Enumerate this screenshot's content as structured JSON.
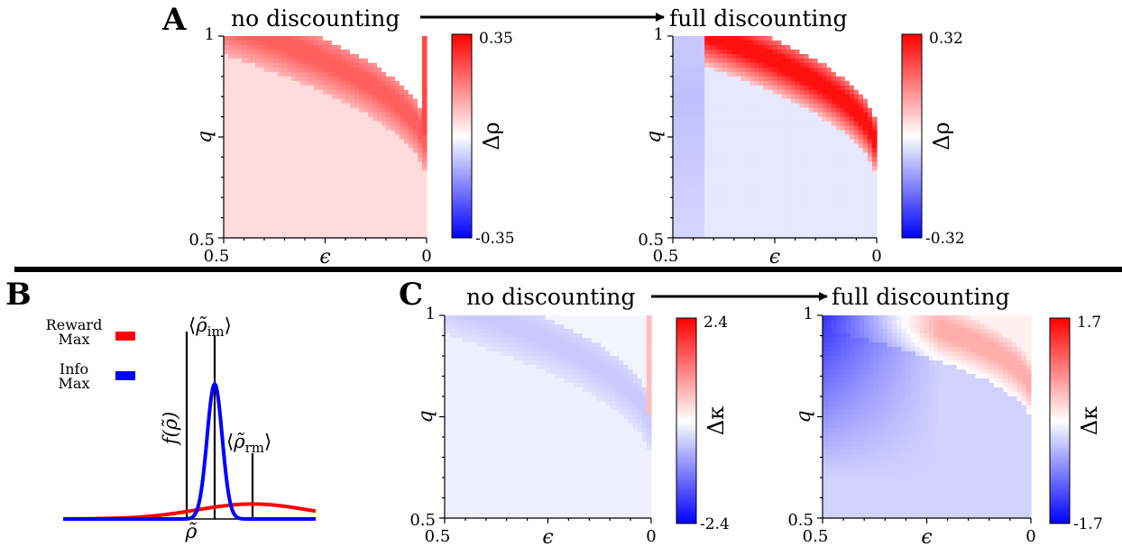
{
  "panels": {
    "A": {
      "letter": "A",
      "from_label": "no discounting",
      "to_label": "full discounting"
    },
    "B": {
      "letter": "B"
    },
    "C": {
      "letter": "C",
      "from_label": "no discounting",
      "to_label": "full discounting"
    }
  },
  "colors": {
    "red": "#ff0000",
    "blue": "#0000ff",
    "white": "#ffffff",
    "black": "#000000"
  },
  "chart_data": [
    {
      "type": "heatmap",
      "id": "A-left",
      "xlabel": "ϵ",
      "ylabel": "q",
      "xlim": [
        0.5,
        0
      ],
      "ylim": [
        0.5,
        1
      ],
      "x_tick_labels": [
        "0.5",
        "0"
      ],
      "y_tick_labels": [
        "0.5",
        "1"
      ],
      "colorbar": {
        "label": "Δρ",
        "min": -0.35,
        "max": 0.35,
        "min_label": "-0.35",
        "max_label": "0.35"
      },
      "pattern": {
        "base": 0.05,
        "band_value": 0.22,
        "band_q_at_eps0": 0.75,
        "band_eps_at_q1": 0.3,
        "upper_value": 0.0,
        "edge_value": 0.25
      }
    },
    {
      "type": "heatmap",
      "id": "A-right",
      "xlabel": "ϵ",
      "ylabel": "q",
      "xlim": [
        0.5,
        0
      ],
      "ylim": [
        0.5,
        1
      ],
      "x_tick_labels": [
        "0.5",
        "0"
      ],
      "y_tick_labels": [
        "0.5",
        "1"
      ],
      "colorbar": {
        "label": "Δρ",
        "min": -0.32,
        "max": 0.32,
        "min_label": "-0.32",
        "max_label": "0.32"
      },
      "pattern": {
        "base": -0.03,
        "band_value": 0.3,
        "band_q_at_eps0": 0.75,
        "band_eps_at_q1": 0.3,
        "upper_value": 0.0,
        "left_value": -0.08
      }
    },
    {
      "type": "line",
      "id": "B",
      "xlabel": "ρ̃",
      "ylabel": "f(ρ̃)",
      "legend": [
        "Reward Max",
        "Info Max"
      ],
      "series": [
        {
          "name": "Reward Max",
          "color": "#ff0000",
          "mean": 0.75,
          "sd": 0.22,
          "peak": 0.08
        },
        {
          "name": "Info Max",
          "color": "#0000ff",
          "mean": 0.6,
          "sd": 0.03,
          "peak": 0.72
        }
      ],
      "annotations": [
        {
          "label": "⟨ρ̃im⟩",
          "x": 0.6
        },
        {
          "label": "⟨ρ̃rm⟩",
          "x": 0.75
        }
      ]
    },
    {
      "type": "heatmap",
      "id": "C-left",
      "xlabel": "ϵ",
      "ylabel": "q",
      "xlim": [
        0.5,
        0
      ],
      "ylim": [
        0.5,
        1
      ],
      "x_tick_labels": [
        "0.5",
        "0"
      ],
      "y_tick_labels": [
        "0.5",
        "1"
      ],
      "colorbar": {
        "label": "Δκ",
        "min": -2.4,
        "max": 2.4,
        "min_label": "-2.4",
        "max_label": "2.4"
      },
      "pattern": {
        "base": -0.15,
        "band_value": -0.5,
        "band_q_at_eps0": 0.75,
        "band_eps_at_q1": 0.3,
        "upper_value": -0.1,
        "edge_value": 0.6
      }
    },
    {
      "type": "heatmap",
      "id": "C-right",
      "xlabel": "ϵ",
      "ylabel": "q",
      "xlim": [
        0.5,
        0
      ],
      "ylim": [
        0.5,
        1
      ],
      "x_tick_labels": [
        "0.5",
        "0"
      ],
      "y_tick_labels": [
        "0.5",
        "1"
      ],
      "colorbar": {
        "label": "Δκ",
        "min": -1.7,
        "max": 1.7,
        "min_label": "-1.7",
        "max_label": "1.7"
      },
      "pattern": {
        "base": -0.3,
        "band_value": 0.55,
        "band_q_at_eps0": 0.85,
        "band_eps_at_q1": 0.2,
        "upper_value": 0.1,
        "corner_value": -1.4
      }
    }
  ]
}
